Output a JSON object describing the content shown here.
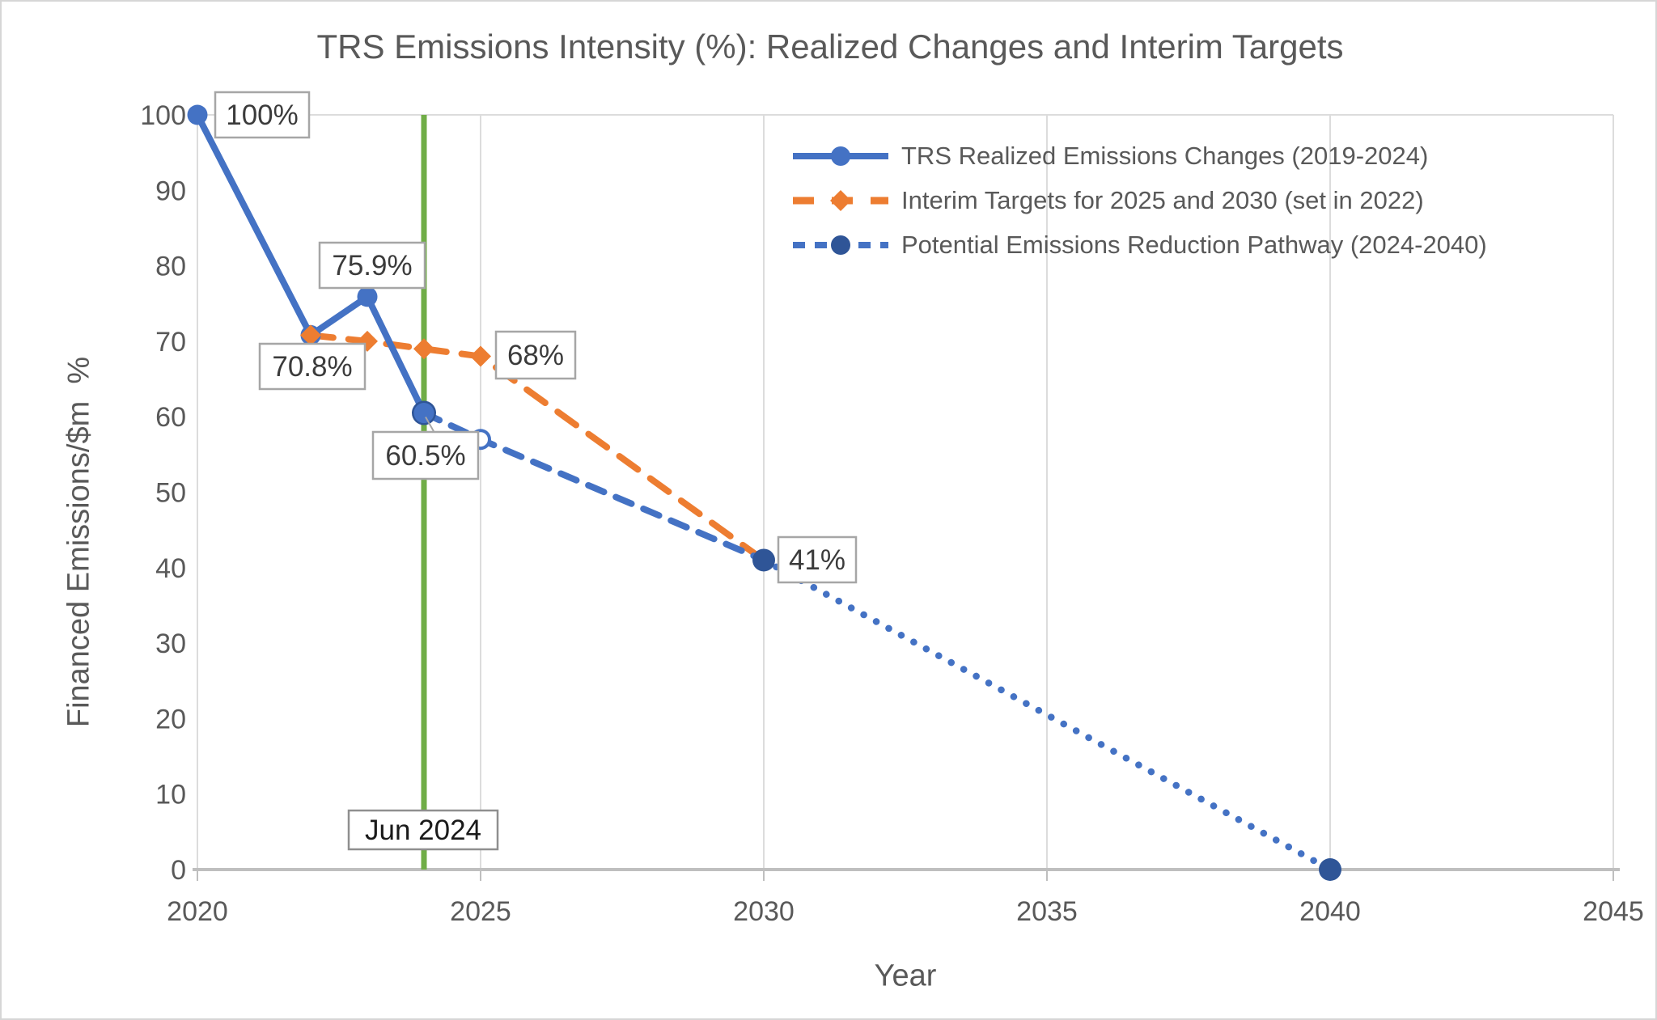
{
  "chart_data": {
    "type": "line",
    "title": "TRS Emissions Intensity (%): Realized Changes and Interim Targets",
    "xlabel": "Year",
    "ylabel": "Financed Emissions/$m  %",
    "xlim": [
      2020,
      2045
    ],
    "ylim": [
      0,
      100
    ],
    "xticks": [
      2020,
      2025,
      2030,
      2035,
      2040,
      2045
    ],
    "yticks": [
      0,
      10,
      20,
      30,
      40,
      50,
      60,
      70,
      80,
      90,
      100
    ],
    "grid": {
      "vertical_gridlines_at_xticks": true,
      "horizontal_gridline_at_top_only": true
    },
    "legend_position": "upper-right",
    "colors": {
      "realized_blue": "#4472C4",
      "targets_orange": "#ED7D31",
      "pathway_marker_navy": "#2F5597",
      "vline_green": "#70AD47",
      "gridline": "#DCDCDC",
      "axis_line": "#BFBFBF",
      "text_gray": "#595959",
      "label_box_border": "#A6A6A6"
    },
    "series": [
      {
        "name": "TRS Realized Emissions Changes (2019-2024)",
        "style": "solid",
        "color": "#4472C4",
        "marker": "circle",
        "points": [
          {
            "x": 2020,
            "y": 100
          },
          {
            "x": 2022,
            "y": 70.8
          },
          {
            "x": 2023,
            "y": 75.9
          },
          {
            "x": 2024,
            "y": 60.5
          }
        ]
      },
      {
        "name": "Interim Targets for 2025 and 2030 (set in 2022)",
        "style": "dashed",
        "color": "#ED7D31",
        "marker": "diamond",
        "points": [
          {
            "x": 2022,
            "y": 70.8
          },
          {
            "x": 2023,
            "y": 70
          },
          {
            "x": 2024,
            "y": 69
          },
          {
            "x": 2025,
            "y": 68
          },
          {
            "x": 2030,
            "y": 41
          }
        ]
      },
      {
        "name": "Potential Emissions Reduction Pathway (2024-2040)",
        "color": "#4472C4",
        "marker_color": "#2F5597",
        "segments": [
          {
            "style": "dashed",
            "points": [
              {
                "x": 2024,
                "y": 60.5
              },
              {
                "x": 2025,
                "y": 57
              },
              {
                "x": 2030,
                "y": 41
              }
            ]
          },
          {
            "style": "dotted",
            "points": [
              {
                "x": 2030,
                "y": 41
              },
              {
                "x": 2040,
                "y": 0
              }
            ]
          }
        ],
        "markers": [
          {
            "x": 2025,
            "y": 57,
            "shape": "circle-open"
          },
          {
            "x": 2030,
            "y": 41,
            "shape": "circle-filled"
          },
          {
            "x": 2040,
            "y": 0,
            "shape": "circle-filled"
          }
        ]
      }
    ],
    "data_labels": [
      {
        "text": "100%",
        "x": 2020,
        "y": 100
      },
      {
        "text": "70.8%",
        "x": 2022,
        "y": 70.8
      },
      {
        "text": "75.9%",
        "x": 2023,
        "y": 75.9
      },
      {
        "text": "60.5%",
        "x": 2024,
        "y": 60.5
      },
      {
        "text": "68%",
        "x": 2025,
        "y": 68
      },
      {
        "text": "41%",
        "x": 2030,
        "y": 41
      }
    ],
    "vline": {
      "x": 2024,
      "label": "Jun 2024",
      "color": "#70AD47"
    }
  }
}
